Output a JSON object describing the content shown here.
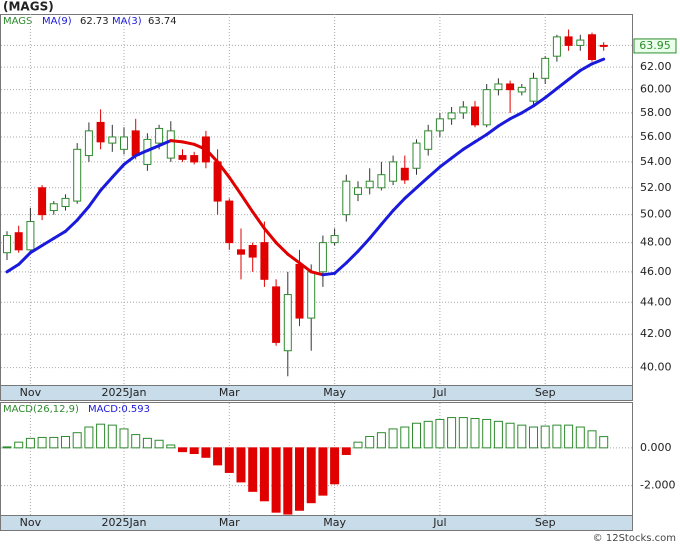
{
  "chart_data": [
    {
      "type": "candlestick",
      "title": "(MAGS)",
      "symbol": "MAGS",
      "log_scale": true,
      "grid": true,
      "up_color": "#2e8b2e",
      "down_color": "#e00000",
      "categories": [
        null,
        null,
        "Nov",
        null,
        null,
        null,
        null,
        null,
        null,
        null,
        "2025Jan",
        null,
        null,
        null,
        null,
        null,
        null,
        null,
        null,
        "Mar",
        null,
        null,
        null,
        null,
        null,
        null,
        null,
        null,
        "May",
        null,
        null,
        null,
        null,
        null,
        null,
        null,
        null,
        "Jul",
        null,
        null,
        null,
        null,
        null,
        null,
        null,
        null,
        "Sep",
        null,
        null,
        null,
        null,
        null
      ],
      "open": [
        47.3,
        48.7,
        47.5,
        52,
        50.3,
        50.6,
        51,
        54.5,
        57.2,
        55.5,
        55,
        56.5,
        53.8,
        55.5,
        54.3,
        54.5,
        54.5,
        56,
        54,
        51,
        47.5,
        47.8,
        48,
        45,
        41,
        46.5,
        43,
        46,
        48,
        50,
        51.5,
        52,
        52,
        52.5,
        53.5,
        53.5,
        55,
        56.5,
        57.5,
        58,
        58.5,
        57,
        60,
        60.5,
        59.8,
        59,
        61,
        63,
        64.8,
        64,
        65,
        64
      ],
      "high": [
        48.8,
        49.2,
        50.5,
        52.2,
        51,
        51.5,
        55.5,
        57.2,
        58.3,
        57,
        56.8,
        57.5,
        56.3,
        57,
        57.3,
        55,
        54.8,
        56.5,
        55,
        51.2,
        49,
        48,
        49.5,
        45.5,
        46,
        47.5,
        46.5,
        48.5,
        49,
        53,
        52.5,
        53.5,
        54,
        54.5,
        54.5,
        55.8,
        57,
        58,
        58.5,
        59,
        59,
        60.5,
        61,
        60.8,
        60.5,
        61.5,
        63,
        65,
        65.5,
        65,
        65.2,
        64.3
      ],
      "low": [
        46.8,
        47.3,
        47.2,
        49.6,
        50,
        50.3,
        50.8,
        54,
        55,
        54.8,
        54.6,
        54.2,
        53.3,
        55,
        54,
        54,
        53.8,
        53.5,
        50,
        47.5,
        45.5,
        46,
        45,
        41.3,
        39.5,
        42.5,
        41,
        45,
        47.8,
        49.5,
        51,
        51.5,
        51.8,
        52.2,
        52.3,
        53,
        54.5,
        56,
        57,
        57.5,
        56.8,
        56.8,
        59.5,
        58,
        59.5,
        58.5,
        60.5,
        62.5,
        63.5,
        63.5,
        62.5,
        63.5
      ],
      "close": [
        48.5,
        47.5,
        49.5,
        50,
        50.8,
        51.2,
        55,
        56.5,
        55.6,
        56,
        56,
        54.5,
        55.8,
        56.7,
        56.5,
        54.2,
        54,
        54,
        51,
        48,
        47.2,
        47,
        45.5,
        41.5,
        44.5,
        43,
        46,
        48,
        48.5,
        52.5,
        52,
        52.5,
        53,
        54,
        52.6,
        55.5,
        56.5,
        57.5,
        58,
        58.5,
        57,
        60,
        60.5,
        60,
        60.2,
        61,
        62.8,
        64.8,
        64,
        64.5,
        62.7,
        63.95
      ],
      "series": [
        {
          "name": "MA(9)",
          "color": "#1a1adc",
          "down_color": "#e00000",
          "legend_value": 62.73,
          "values": [
            46.0,
            46.5,
            47.3,
            47.8,
            48.3,
            48.8,
            49.6,
            50.6,
            51.8,
            52.8,
            53.8,
            54.5,
            54.9,
            55.3,
            55.7,
            55.6,
            55.4,
            55.0,
            54.0,
            52.8,
            51.5,
            50.2,
            49.0,
            48.0,
            47.2,
            46.6,
            46.0,
            45.8,
            45.9,
            46.6,
            47.4,
            48.3,
            49.3,
            50.3,
            51.2,
            52.0,
            52.8,
            53.6,
            54.3,
            55.0,
            55.6,
            56.2,
            56.9,
            57.5,
            58.0,
            58.6,
            59.3,
            60.1,
            60.9,
            61.7,
            62.3,
            62.73
          ]
        },
        {
          "name": "MA(3)",
          "color": "#1a1adc",
          "legend_value": 63.74
        }
      ],
      "last_price": 63.95,
      "ylim": [
        39,
        67
      ],
      "yticks": [
        {
          "value": 40,
          "label": "40.00"
        },
        {
          "value": 42,
          "label": "42.00"
        },
        {
          "value": 44,
          "label": "44.00"
        },
        {
          "value": 46,
          "label": "46.00"
        },
        {
          "value": 48,
          "label": "48.00"
        },
        {
          "value": 50,
          "label": "50.00"
        },
        {
          "value": 52,
          "label": "52.00"
        },
        {
          "value": 54,
          "label": "54.00"
        },
        {
          "value": 56,
          "label": "56.00"
        },
        {
          "value": 58,
          "label": "58.00"
        },
        {
          "value": 60,
          "label": "60.00"
        },
        {
          "value": 62,
          "label": "62.00"
        },
        {
          "value": 64,
          "label": "64.00"
        }
      ]
    },
    {
      "type": "bar",
      "title": "MACD(26,12,9)",
      "legend_text": "MACD:0.593",
      "grid": true,
      "color": "#2e8b2e",
      "negative_color": "#e00000",
      "categories": [
        null,
        null,
        "Nov",
        null,
        null,
        null,
        null,
        null,
        null,
        null,
        "2025Jan",
        null,
        null,
        null,
        null,
        null,
        null,
        null,
        null,
        "Mar",
        null,
        null,
        null,
        null,
        null,
        null,
        null,
        null,
        "May",
        null,
        null,
        null,
        null,
        null,
        null,
        null,
        null,
        "Jul",
        null,
        null,
        null,
        null,
        null,
        null,
        null,
        null,
        "Sep",
        null,
        null,
        null,
        null,
        null
      ],
      "values": [
        0.05,
        0.3,
        0.5,
        0.55,
        0.55,
        0.6,
        0.8,
        1.1,
        1.25,
        1.2,
        1.0,
        0.7,
        0.5,
        0.4,
        0.15,
        -0.2,
        -0.3,
        -0.5,
        -0.9,
        -1.3,
        -1.8,
        -2.3,
        -2.8,
        -3.4,
        -3.5,
        -3.3,
        -2.9,
        -2.5,
        -1.9,
        -0.35,
        0.3,
        0.6,
        0.8,
        1.0,
        1.1,
        1.3,
        1.4,
        1.5,
        1.6,
        1.6,
        1.55,
        1.5,
        1.4,
        1.3,
        1.2,
        1.1,
        1.15,
        1.2,
        1.2,
        1.1,
        0.9,
        0.593
      ],
      "ylim": [
        -3.55,
        2.37
      ],
      "yticks": [
        {
          "value": 0,
          "label": "0.000"
        },
        {
          "value": -2,
          "label": "-2.000"
        }
      ]
    }
  ],
  "watermark": "© 12Stocks.com"
}
